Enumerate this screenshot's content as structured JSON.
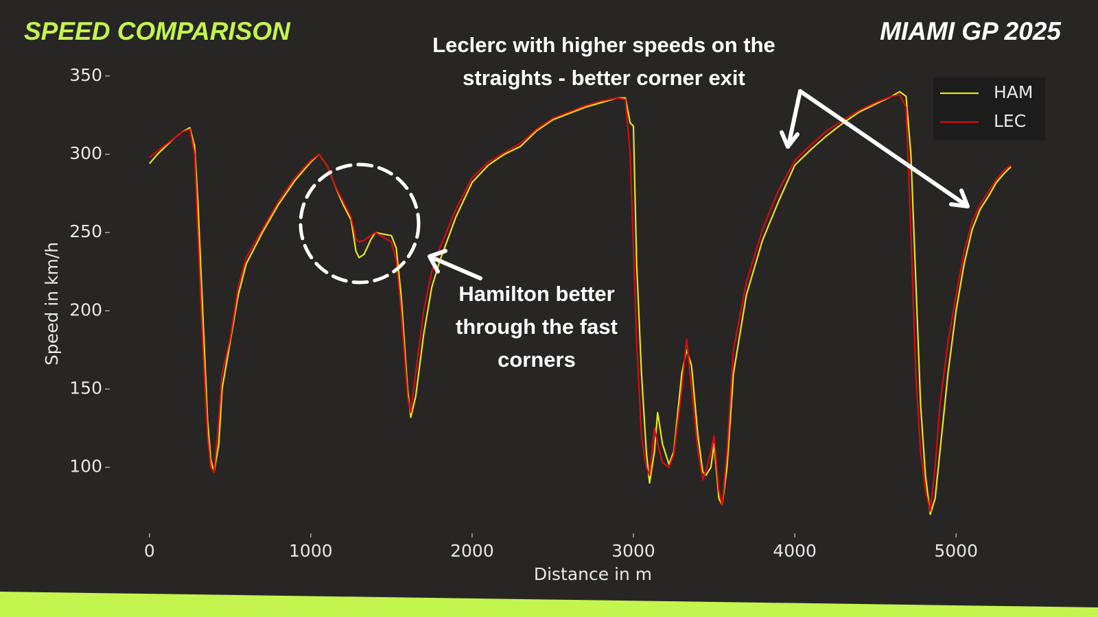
{
  "chart_data": {
    "type": "line",
    "title": "SPEED COMPARISON",
    "subtitle": "MIAMI GP 2025",
    "x_label": "Distance in m",
    "y_label": "Speed in km/h",
    "annotations": [
      {
        "lines": [
          "Leclerc with higher speeds on the",
          "straights - better corner exit"
        ]
      },
      {
        "lines": [
          "Hamilton better",
          "through the fast",
          "corners"
        ]
      }
    ],
    "xlim": [
      -250,
      5650
    ],
    "ylim": [
      60,
      360
    ],
    "xticks": [
      0,
      1000,
      2000,
      3000,
      4000,
      5000
    ],
    "yticks": [
      100,
      150,
      200,
      250,
      300,
      350
    ],
    "grid": false,
    "legend": "upper right",
    "x": [
      0,
      50,
      100,
      150,
      200,
      250,
      280,
      300,
      330,
      360,
      380,
      400,
      430,
      450,
      500,
      550,
      600,
      700,
      800,
      900,
      1000,
      1050,
      1100,
      1150,
      1200,
      1250,
      1280,
      1300,
      1330,
      1370,
      1400,
      1450,
      1500,
      1530,
      1560,
      1600,
      1620,
      1650,
      1700,
      1750,
      1800,
      1900,
      2000,
      2100,
      2200,
      2300,
      2400,
      2500,
      2600,
      2700,
      2800,
      2900,
      2950,
      2980,
      3000,
      3020,
      3050,
      3080,
      3100,
      3130,
      3150,
      3180,
      3220,
      3250,
      3300,
      3330,
      3360,
      3400,
      3430,
      3450,
      3480,
      3500,
      3530,
      3550,
      3580,
      3620,
      3700,
      3800,
      3900,
      4000,
      4100,
      4200,
      4300,
      4400,
      4500,
      4600,
      4650,
      4690,
      4720,
      4750,
      4780,
      4810,
      4840,
      4870,
      4900,
      4950,
      5000,
      5050,
      5100,
      5150,
      5200,
      5250,
      5300,
      5340
    ],
    "series": [
      {
        "name": "HAM",
        "color": "#e6e619",
        "values": [
          294,
          300,
          305,
          310,
          314,
          317,
          305,
          270,
          200,
          130,
          105,
          97,
          115,
          150,
          180,
          210,
          230,
          250,
          268,
          283,
          295,
          300,
          293,
          280,
          268,
          258,
          238,
          234,
          236,
          245,
          250,
          249,
          248,
          240,
          210,
          150,
          132,
          145,
          185,
          215,
          232,
          260,
          282,
          293,
          300,
          305,
          315,
          322,
          326,
          330,
          333,
          336,
          336,
          320,
          318,
          230,
          160,
          110,
          90,
          110,
          135,
          115,
          102,
          110,
          160,
          175,
          165,
          120,
          97,
          95,
          100,
          115,
          80,
          76,
          100,
          160,
          210,
          245,
          270,
          293,
          303,
          312,
          320,
          327,
          332,
          337,
          340,
          337,
          300,
          220,
          140,
          95,
          70,
          80,
          110,
          160,
          200,
          230,
          252,
          265,
          273,
          282,
          288,
          292
        ]
      },
      {
        "name": "LEC",
        "color": "#dd0a0a",
        "values": [
          298,
          302,
          306,
          310,
          314,
          316,
          300,
          250,
          180,
          120,
          100,
          97,
          130,
          160,
          182,
          215,
          234,
          252,
          270,
          285,
          296,
          300,
          293,
          280,
          270,
          260,
          246,
          244,
          245,
          248,
          250,
          247,
          244,
          232,
          200,
          145,
          135,
          160,
          200,
          225,
          240,
          265,
          285,
          295,
          301,
          307,
          316,
          323,
          327,
          331,
          334,
          336,
          335,
          300,
          240,
          180,
          120,
          100,
          95,
          125,
          115,
          103,
          100,
          108,
          150,
          182,
          150,
          110,
          92,
          98,
          110,
          120,
          85,
          76,
          110,
          175,
          218,
          252,
          277,
          296,
          306,
          315,
          322,
          328,
          333,
          337,
          338,
          330,
          250,
          160,
          110,
          85,
          72,
          100,
          140,
          180,
          210,
          238,
          257,
          268,
          276,
          284,
          290,
          293
        ]
      }
    ]
  }
}
